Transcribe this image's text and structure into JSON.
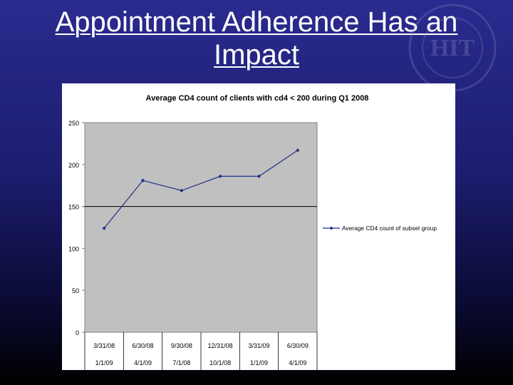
{
  "slide": {
    "title_line1": "Appointment Adherence Has an",
    "title_line2": "Impact",
    "logo_text": "HIT"
  },
  "colors": {
    "plot_bg": "#c0c0c0",
    "series_line": "#1f2f8a",
    "panel_bg": "#ffffff"
  },
  "chart_data": {
    "type": "line",
    "title": "Average CD4 count of clients with cd4 < 200 during Q1 2008",
    "xlabel": "",
    "ylabel": "",
    "categories": [
      "3/31/08",
      "6/30/08",
      "9/30/08",
      "12/31/08",
      "3/31/09",
      "6/30/09"
    ],
    "categories_row2": [
      "1/1/09",
      "4/1/09",
      "7/1/08",
      "10/1/08",
      "1/1/09",
      "4/1/09"
    ],
    "series": [
      {
        "name": "Average CD4 count of subset group",
        "values": [
          124,
          181,
          169,
          186,
          186,
          217
        ]
      }
    ],
    "ylim": [
      0,
      250
    ],
    "yticks": [
      "0",
      "50",
      "100",
      "150",
      "200",
      "250"
    ],
    "grid": "150 only",
    "legend_position": "right"
  }
}
